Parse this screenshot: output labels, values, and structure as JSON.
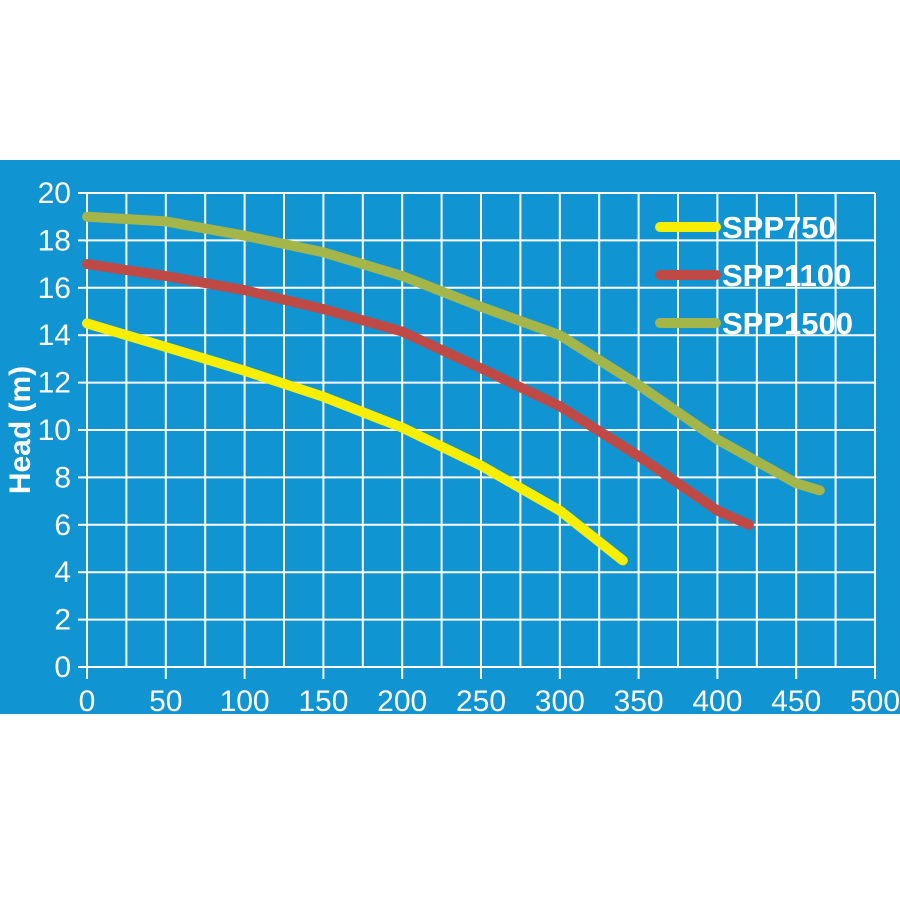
{
  "chart_data": {
    "type": "line",
    "title": "",
    "xlabel": "",
    "ylabel": "Head (m)",
    "xlim": [
      0,
      500
    ],
    "ylim": [
      0,
      20
    ],
    "x_grid_step": 25,
    "x_tick_step": 50,
    "y_grid_step": 2,
    "y_tick_step": 2,
    "x_ticks": [
      "0",
      "50",
      "100",
      "150",
      "200",
      "250",
      "300",
      "350",
      "400",
      "450",
      "500"
    ],
    "y_ticks": [
      "0",
      "2",
      "4",
      "6",
      "8",
      "10",
      "12",
      "14",
      "16",
      "18",
      "20"
    ],
    "grid": true,
    "legend_position": "top-right",
    "series": [
      {
        "name": "SPP750",
        "color": "#f8ee00",
        "points": [
          [
            0,
            14.5
          ],
          [
            50,
            13.5
          ],
          [
            100,
            12.5
          ],
          [
            150,
            11.4
          ],
          [
            200,
            10.1
          ],
          [
            250,
            8.5
          ],
          [
            300,
            6.6
          ],
          [
            340,
            4.5
          ]
        ]
      },
      {
        "name": "SPP1100",
        "color": "#bf4a45",
        "points": [
          [
            0,
            17.0
          ],
          [
            50,
            16.5
          ],
          [
            100,
            15.9
          ],
          [
            150,
            15.1
          ],
          [
            200,
            14.15
          ],
          [
            250,
            12.6
          ],
          [
            300,
            11.0
          ],
          [
            350,
            8.9
          ],
          [
            400,
            6.6
          ],
          [
            420,
            6.0
          ]
        ]
      },
      {
        "name": "SPP1500",
        "color": "#a4b54a",
        "points": [
          [
            0,
            19.0
          ],
          [
            50,
            18.8
          ],
          [
            100,
            18.2
          ],
          [
            150,
            17.5
          ],
          [
            200,
            16.5
          ],
          [
            250,
            15.2
          ],
          [
            300,
            14.0
          ],
          [
            350,
            11.9
          ],
          [
            400,
            9.6
          ],
          [
            450,
            7.75
          ],
          [
            465,
            7.45
          ]
        ]
      }
    ],
    "colors": {
      "panel_background": "#1194d2",
      "grid": "#ffffff",
      "text": "#ffffff"
    }
  }
}
